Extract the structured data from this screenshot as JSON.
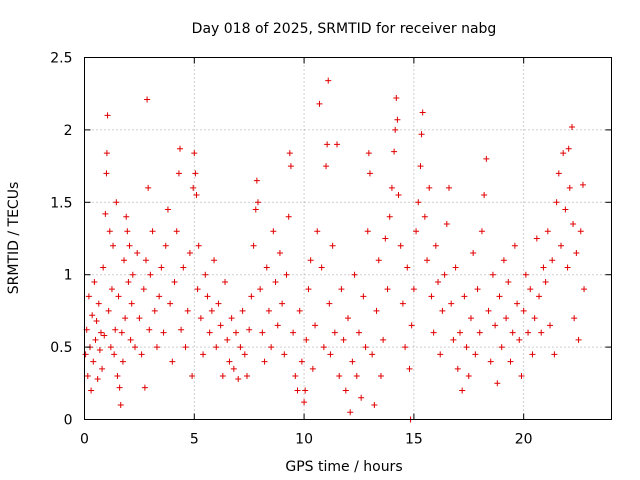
{
  "chart_data": {
    "type": "scatter",
    "title": "Day 018 of 2025, SRMTID for receiver nabg",
    "xlabel": "GPS time / hours",
    "ylabel": "SRMTID / TECUs",
    "xlim": [
      0,
      24
    ],
    "ylim": [
      0,
      2.5
    ],
    "xticks": [
      0,
      5,
      10,
      15,
      20
    ],
    "xtick_labels": [
      "0",
      "5",
      "10",
      "15",
      "20"
    ],
    "yticks": [
      0,
      0.5,
      1,
      1.5,
      2,
      2.5
    ],
    "ytick_labels": [
      "0",
      "0.5",
      "1",
      "1.5",
      "2",
      "2.5"
    ],
    "grid": true,
    "marker": "+",
    "series": [
      {
        "name": "SRMTID",
        "color": "#e00000",
        "points": [
          [
            0.05,
            0.45
          ],
          [
            0.1,
            0.62
          ],
          [
            0.15,
            0.3
          ],
          [
            0.2,
            0.85
          ],
          [
            0.25,
            0.5
          ],
          [
            0.3,
            0.2
          ],
          [
            0.35,
            0.72
          ],
          [
            0.4,
            0.4
          ],
          [
            0.45,
            0.95
          ],
          [
            0.5,
            0.55
          ],
          [
            0.55,
            0.68
          ],
          [
            0.6,
            0.28
          ],
          [
            0.65,
            0.8
          ],
          [
            0.7,
            0.48
          ],
          [
            0.75,
            0.6
          ],
          [
            0.8,
            0.35
          ],
          [
            0.85,
            1.05
          ],
          [
            0.9,
            0.58
          ],
          [
            0.95,
            1.42
          ],
          [
            1.0,
            1.7
          ],
          [
            1.02,
            1.84
          ],
          [
            1.05,
            2.1
          ],
          [
            1.1,
            0.75
          ],
          [
            1.15,
            1.3
          ],
          [
            1.2,
            0.5
          ],
          [
            1.25,
            0.9
          ],
          [
            1.3,
            1.2
          ],
          [
            1.35,
            0.45
          ],
          [
            1.4,
            0.62
          ],
          [
            1.45,
            1.5
          ],
          [
            1.5,
            0.3
          ],
          [
            1.55,
            0.85
          ],
          [
            1.6,
            0.22
          ],
          [
            1.65,
            0.1
          ],
          [
            1.7,
            0.6
          ],
          [
            1.75,
            0.4
          ],
          [
            1.8,
            1.1
          ],
          [
            1.85,
            0.7
          ],
          [
            1.9,
            1.4
          ],
          [
            1.95,
            1.3
          ],
          [
            2.0,
            0.95
          ],
          [
            2.05,
            1.2
          ],
          [
            2.1,
            0.55
          ],
          [
            2.15,
            0.8
          ],
          [
            2.2,
            1.0
          ],
          [
            2.3,
            0.5
          ],
          [
            2.4,
            1.15
          ],
          [
            2.5,
            0.7
          ],
          [
            2.6,
            0.45
          ],
          [
            2.7,
            0.9
          ],
          [
            2.75,
            0.22
          ],
          [
            2.8,
            1.1
          ],
          [
            2.85,
            2.21
          ],
          [
            2.9,
            1.6
          ],
          [
            2.95,
            0.62
          ],
          [
            3.0,
            1.0
          ],
          [
            3.1,
            1.3
          ],
          [
            3.2,
            0.75
          ],
          [
            3.3,
            0.5
          ],
          [
            3.4,
            0.85
          ],
          [
            3.5,
            1.05
          ],
          [
            3.6,
            0.6
          ],
          [
            3.7,
            1.2
          ],
          [
            3.8,
            1.45
          ],
          [
            3.9,
            0.8
          ],
          [
            4.0,
            0.4
          ],
          [
            4.1,
            0.95
          ],
          [
            4.2,
            1.3
          ],
          [
            4.3,
            1.7
          ],
          [
            4.35,
            1.87
          ],
          [
            4.4,
            0.62
          ],
          [
            4.5,
            1.05
          ],
          [
            4.6,
            0.5
          ],
          [
            4.7,
            0.75
          ],
          [
            4.8,
            1.15
          ],
          [
            4.9,
            0.3
          ],
          [
            4.95,
            1.6
          ],
          [
            5.0,
            1.84
          ],
          [
            5.05,
            1.7
          ],
          [
            5.1,
            1.55
          ],
          [
            5.15,
            0.9
          ],
          [
            5.2,
            1.2
          ],
          [
            5.3,
            0.7
          ],
          [
            5.4,
            0.45
          ],
          [
            5.5,
            1.0
          ],
          [
            5.6,
            0.85
          ],
          [
            5.7,
            0.6
          ],
          [
            5.8,
            0.75
          ],
          [
            5.9,
            1.1
          ],
          [
            6.0,
            0.5
          ],
          [
            6.1,
            0.8
          ],
          [
            6.2,
            0.65
          ],
          [
            6.3,
            0.3
          ],
          [
            6.4,
            0.95
          ],
          [
            6.5,
            0.55
          ],
          [
            6.6,
            0.4
          ],
          [
            6.7,
            0.7
          ],
          [
            6.8,
            0.35
          ],
          [
            6.9,
            0.6
          ],
          [
            7.0,
            0.28
          ],
          [
            7.1,
            0.5
          ],
          [
            7.2,
            0.75
          ],
          [
            7.3,
            0.45
          ],
          [
            7.4,
            0.3
          ],
          [
            7.5,
            0.62
          ],
          [
            7.6,
            0.85
          ],
          [
            7.7,
            1.2
          ],
          [
            7.8,
            1.45
          ],
          [
            7.85,
            1.65
          ],
          [
            7.9,
            1.5
          ],
          [
            8.0,
            0.9
          ],
          [
            8.1,
            0.6
          ],
          [
            8.2,
            0.4
          ],
          [
            8.3,
            1.05
          ],
          [
            8.4,
            0.75
          ],
          [
            8.5,
            0.5
          ],
          [
            8.6,
            1.3
          ],
          [
            8.7,
            0.95
          ],
          [
            8.8,
            0.65
          ],
          [
            8.9,
            1.15
          ],
          [
            9.0,
            0.8
          ],
          [
            9.1,
            0.45
          ],
          [
            9.2,
            1.0
          ],
          [
            9.3,
            1.4
          ],
          [
            9.35,
            1.84
          ],
          [
            9.4,
            1.75
          ],
          [
            9.5,
            0.6
          ],
          [
            9.6,
            0.3
          ],
          [
            9.7,
            0.2
          ],
          [
            9.8,
            0.75
          ],
          [
            9.9,
            0.4
          ],
          [
            10.0,
            0.12
          ],
          [
            10.05,
            0.2
          ],
          [
            10.1,
            0.55
          ],
          [
            10.2,
            0.9
          ],
          [
            10.3,
            1.1
          ],
          [
            10.4,
            0.35
          ],
          [
            10.5,
            0.65
          ],
          [
            10.6,
            1.3
          ],
          [
            10.7,
            2.18
          ],
          [
            10.8,
            1.05
          ],
          [
            10.9,
            0.5
          ],
          [
            11.0,
            1.75
          ],
          [
            11.05,
            1.9
          ],
          [
            11.1,
            2.34
          ],
          [
            11.15,
            0.8
          ],
          [
            11.2,
            0.45
          ],
          [
            11.3,
            1.2
          ],
          [
            11.4,
            0.6
          ],
          [
            11.5,
            1.9
          ],
          [
            11.6,
            0.3
          ],
          [
            11.7,
            0.9
          ],
          [
            11.8,
            0.55
          ],
          [
            11.9,
            0.2
          ],
          [
            12.0,
            0.7
          ],
          [
            12.1,
            0.05
          ],
          [
            12.2,
            0.4
          ],
          [
            12.3,
            1.0
          ],
          [
            12.4,
            0.3
          ],
          [
            12.5,
            0.6
          ],
          [
            12.6,
            0.15
          ],
          [
            12.7,
            0.85
          ],
          [
            12.8,
            0.5
          ],
          [
            12.9,
            1.3
          ],
          [
            12.95,
            1.84
          ],
          [
            13.0,
            1.7
          ],
          [
            13.1,
            0.45
          ],
          [
            13.2,
            0.1
          ],
          [
            13.3,
            0.75
          ],
          [
            13.4,
            1.1
          ],
          [
            13.5,
            0.3
          ],
          [
            13.6,
            0.55
          ],
          [
            13.7,
            1.25
          ],
          [
            13.8,
            0.9
          ],
          [
            13.9,
            1.4
          ],
          [
            14.0,
            1.6
          ],
          [
            14.1,
            1.85
          ],
          [
            14.15,
            2.0
          ],
          [
            14.2,
            2.22
          ],
          [
            14.25,
            2.07
          ],
          [
            14.3,
            1.55
          ],
          [
            14.4,
            1.2
          ],
          [
            14.5,
            0.8
          ],
          [
            14.6,
            0.5
          ],
          [
            14.7,
            1.05
          ],
          [
            14.8,
            0.35
          ],
          [
            14.85,
            0.0
          ],
          [
            14.9,
            0.65
          ],
          [
            15.0,
            0.9
          ],
          [
            15.1,
            1.3
          ],
          [
            15.2,
            1.5
          ],
          [
            15.3,
            1.75
          ],
          [
            15.35,
            1.97
          ],
          [
            15.4,
            2.12
          ],
          [
            15.5,
            1.4
          ],
          [
            15.6,
            1.1
          ],
          [
            15.7,
            1.6
          ],
          [
            15.8,
            0.85
          ],
          [
            15.9,
            0.6
          ],
          [
            16.0,
            1.2
          ],
          [
            16.1,
            0.95
          ],
          [
            16.2,
            0.45
          ],
          [
            16.3,
            0.75
          ],
          [
            16.4,
            1.0
          ],
          [
            16.5,
            1.35
          ],
          [
            16.6,
            1.6
          ],
          [
            16.7,
            0.8
          ],
          [
            16.8,
            0.55
          ],
          [
            16.9,
            1.05
          ],
          [
            17.0,
            0.35
          ],
          [
            17.1,
            0.6
          ],
          [
            17.2,
            0.2
          ],
          [
            17.3,
            0.85
          ],
          [
            17.4,
            0.5
          ],
          [
            17.5,
            0.3
          ],
          [
            17.6,
            0.7
          ],
          [
            17.7,
            1.15
          ],
          [
            17.8,
            0.45
          ],
          [
            17.9,
            0.9
          ],
          [
            18.0,
            0.6
          ],
          [
            18.1,
            1.3
          ],
          [
            18.2,
            1.55
          ],
          [
            18.3,
            1.8
          ],
          [
            18.4,
            0.75
          ],
          [
            18.5,
            0.4
          ],
          [
            18.6,
            1.0
          ],
          [
            18.7,
            0.65
          ],
          [
            18.8,
            0.25
          ],
          [
            18.9,
            0.85
          ],
          [
            19.0,
            0.5
          ],
          [
            19.1,
            1.1
          ],
          [
            19.2,
            0.7
          ],
          [
            19.3,
            0.95
          ],
          [
            19.4,
            0.4
          ],
          [
            19.5,
            0.6
          ],
          [
            19.6,
            1.2
          ],
          [
            19.7,
            0.8
          ],
          [
            19.8,
            0.55
          ],
          [
            19.9,
            0.3
          ],
          [
            20.0,
            0.75
          ],
          [
            20.1,
            1.0
          ],
          [
            20.2,
            0.6
          ],
          [
            20.3,
            0.9
          ],
          [
            20.4,
            0.45
          ],
          [
            20.5,
            0.7
          ],
          [
            20.6,
            1.25
          ],
          [
            20.7,
            0.85
          ],
          [
            20.8,
            0.6
          ],
          [
            20.9,
            1.05
          ],
          [
            21.0,
            0.95
          ],
          [
            21.1,
            1.3
          ],
          [
            21.2,
            0.65
          ],
          [
            21.3,
            1.1
          ],
          [
            21.4,
            0.45
          ],
          [
            21.5,
            1.5
          ],
          [
            21.6,
            1.7
          ],
          [
            21.7,
            1.2
          ],
          [
            21.8,
            1.84
          ],
          [
            21.9,
            1.45
          ],
          [
            22.0,
            1.05
          ],
          [
            22.05,
            1.87
          ],
          [
            22.1,
            1.6
          ],
          [
            22.2,
            2.02
          ],
          [
            22.25,
            1.35
          ],
          [
            22.3,
            0.7
          ],
          [
            22.4,
            1.15
          ],
          [
            22.5,
            0.55
          ],
          [
            22.6,
            1.3
          ],
          [
            22.7,
            1.62
          ],
          [
            22.75,
            0.9
          ]
        ]
      }
    ]
  }
}
